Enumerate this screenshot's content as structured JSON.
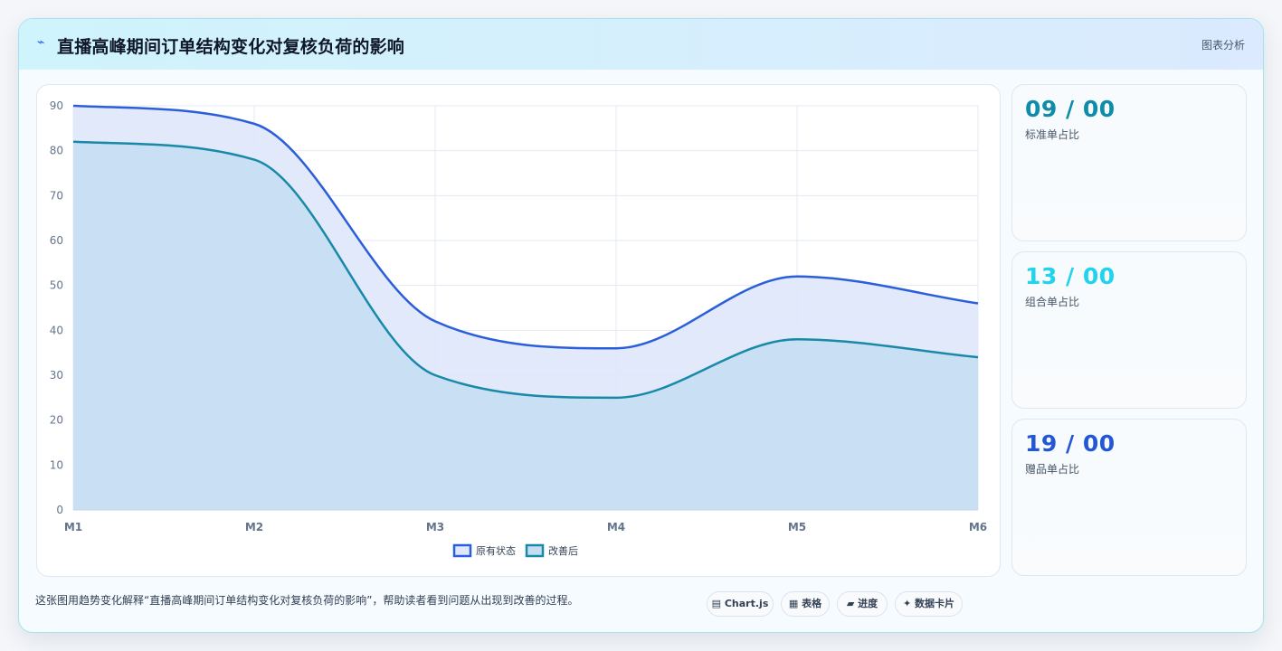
{
  "header": {
    "icon": "lightning-icon",
    "title": "直播高峰期间订单结构变化对复核负荷的影响",
    "tag": "图表分析"
  },
  "chart_data": {
    "type": "area",
    "categories": [
      "M1",
      "M2",
      "M3",
      "M4",
      "M5",
      "M6"
    ],
    "series": [
      {
        "name": "原有状态",
        "values": [
          90,
          86,
          42,
          36,
          52,
          46
        ],
        "color": "#2b5fd9",
        "fill": "#dfe8fb"
      },
      {
        "name": "改善后",
        "values": [
          82,
          78,
          30,
          25,
          38,
          34
        ],
        "color": "#1889a8",
        "fill": "#c4ddf1"
      }
    ],
    "ylim": [
      0,
      90
    ],
    "yticks": [
      0,
      10,
      20,
      30,
      40,
      50,
      60,
      70,
      80,
      90
    ],
    "grid": true,
    "legend": "bottom-center",
    "smooth": true
  },
  "stats": [
    {
      "value": "09 / 00",
      "label": "标准单占比",
      "color": "#0e8ca8"
    },
    {
      "value": "13 / 00",
      "label": "组合单占比",
      "color": "#22d3ee"
    },
    {
      "value": "19 / 00",
      "label": "赠品单占比",
      "color": "#2457d6"
    }
  ],
  "footer": {
    "text": "这张图用趋势变化解释“直播高峰期间订单结构变化对复核负荷的影响”，帮助读者看到问题从出现到改善的过程。",
    "chips": [
      {
        "icon": "chart-icon",
        "glyph": "▤",
        "label": "Chart.js"
      },
      {
        "icon": "table-icon",
        "glyph": "▦",
        "label": "表格"
      },
      {
        "icon": "progress-icon",
        "glyph": "▰",
        "label": "进度"
      },
      {
        "icon": "sparkle-icon",
        "glyph": "✦",
        "label": "数据卡片"
      }
    ]
  }
}
